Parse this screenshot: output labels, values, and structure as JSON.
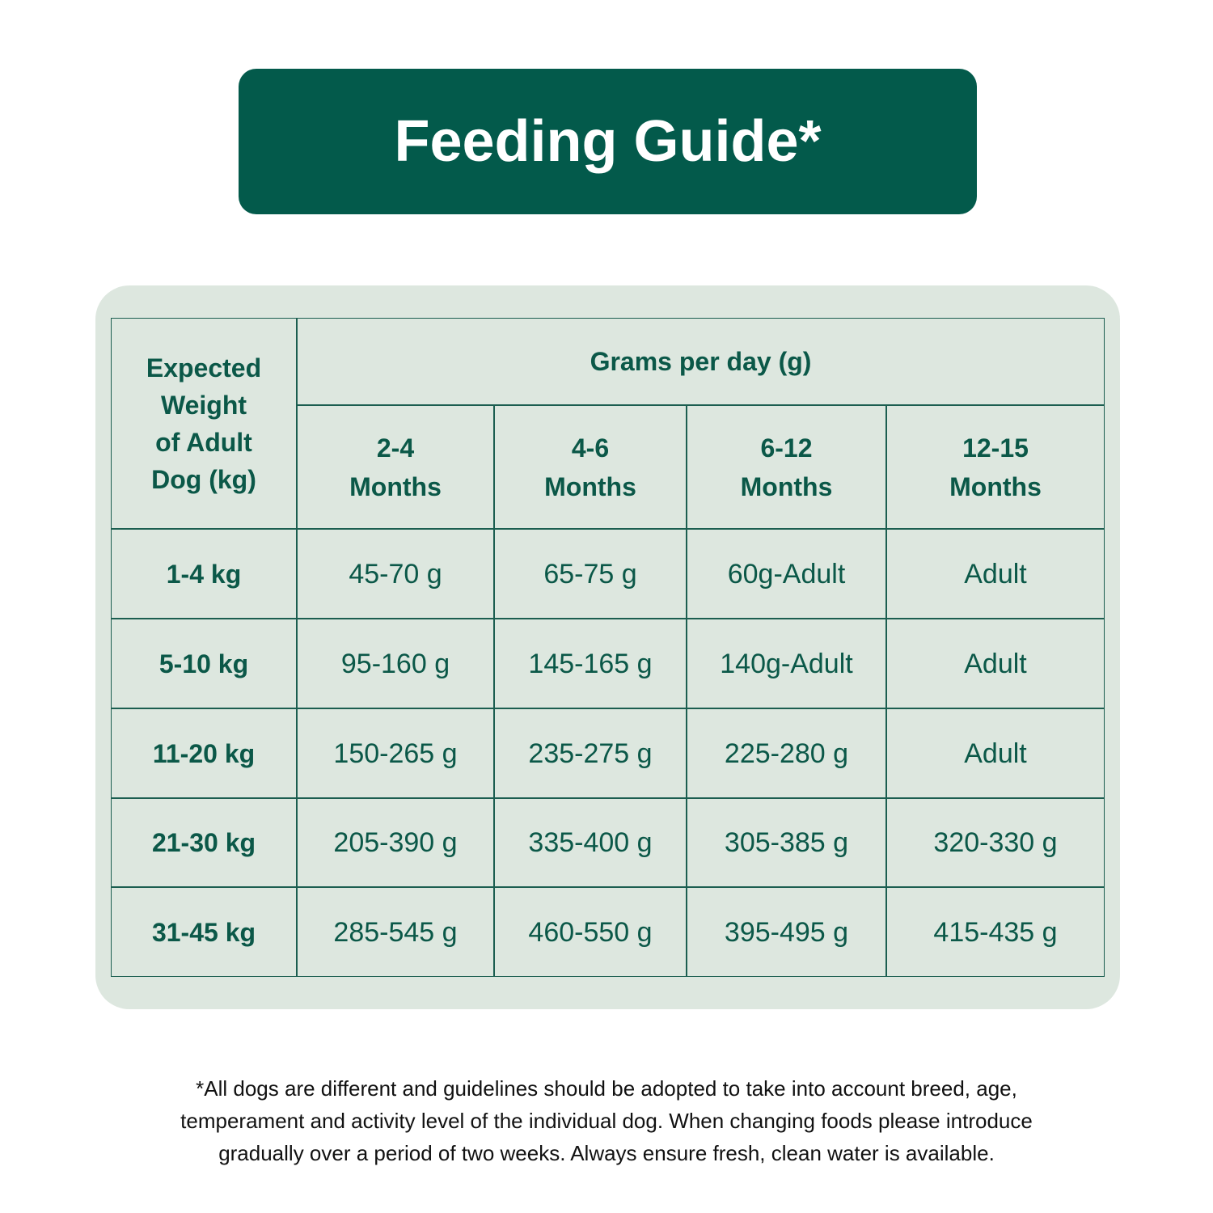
{
  "header": {
    "title": "Feeding Guide*"
  },
  "table": {
    "corner": [
      "Expected",
      "Weight",
      "of Adult",
      "Dog (kg)"
    ],
    "group": "Grams per day (g)",
    "columns": [
      [
        "2-4",
        "Months"
      ],
      [
        "4-6",
        "Months"
      ],
      [
        "6-12",
        "Months"
      ],
      [
        "12-15",
        "Months"
      ]
    ],
    "rows": [
      [
        "1-4 kg",
        "45-70 g",
        "65-75 g",
        "60g-Adult",
        "Adult"
      ],
      [
        "5-10 kg",
        "95-160 g",
        "145-165 g",
        "140g-Adult",
        "Adult"
      ],
      [
        "11-20 kg",
        "150-265 g",
        "235-275 g",
        "225-280 g",
        "Adult"
      ],
      [
        "21-30 kg",
        "205-390 g",
        "335-400 g",
        "305-385 g",
        "320-330 g"
      ],
      [
        "31-45 kg",
        "285-545 g",
        "460-550 g",
        "395-495 g",
        "415-435 g"
      ]
    ]
  },
  "footnote": [
    "*All dogs are different and guidelines should be adopted to take into account breed, age,",
    "temperament and activity level of the individual dog. When changing foods please introduce",
    "gradually over a period of two weeks. Always ensure fresh, clean water is available."
  ]
}
